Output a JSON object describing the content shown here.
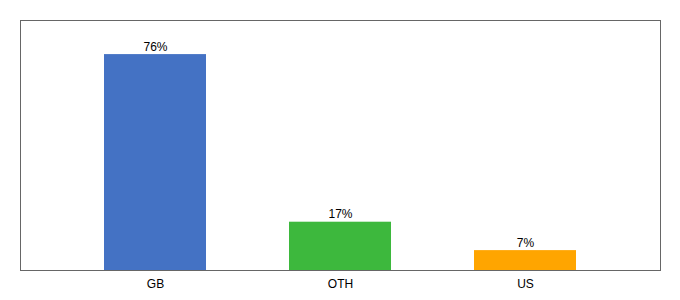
{
  "chart_data": {
    "type": "bar",
    "categories": [
      "GB",
      "OTH",
      "US"
    ],
    "values": [
      76,
      17,
      7
    ],
    "value_labels": [
      "76%",
      "17%",
      "7%"
    ],
    "colors": [
      "#4472C4",
      "#3DB83D",
      "#FFA500"
    ],
    "ylim": [
      0,
      88
    ],
    "data_labels": true,
    "tick_labels": "x"
  }
}
